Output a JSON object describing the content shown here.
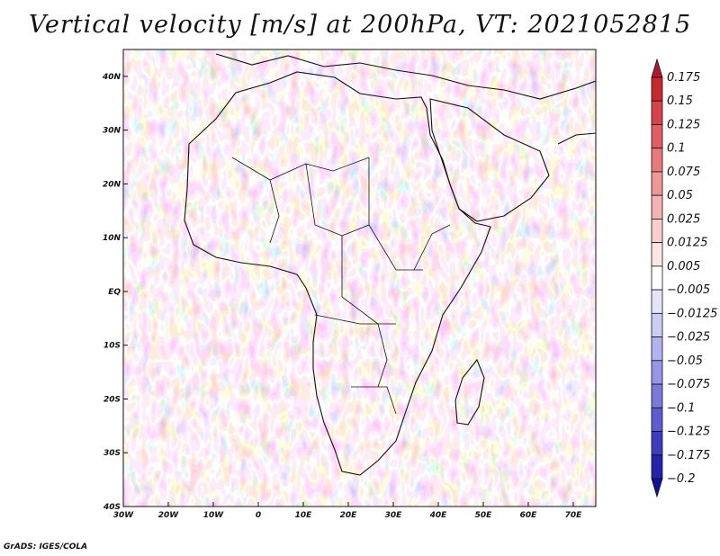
{
  "title": "Vertical velocity [m/s] at 200hPa, VT: 2021052815",
  "credit": "GrADS: IGES/COLA",
  "map": {
    "region": "Africa",
    "variable": "Vertical velocity",
    "units": "m/s",
    "level": "200hPa",
    "valid_time": "2021052815",
    "lon_range": [
      -30,
      75
    ],
    "lat_range": [
      -40,
      45
    ],
    "x_ticks": [
      "30W",
      "20W",
      "10W",
      "0",
      "10E",
      "20E",
      "30E",
      "40E",
      "50E",
      "60E",
      "70E"
    ],
    "x_tick_lons": [
      -30,
      -20,
      -10,
      0,
      10,
      20,
      30,
      40,
      50,
      60,
      70
    ],
    "y_ticks": [
      "40N",
      "30N",
      "20N",
      "10N",
      "EQ",
      "10S",
      "20S",
      "30S",
      "40S"
    ],
    "y_tick_lats": [
      40,
      30,
      20,
      10,
      0,
      -10,
      -20,
      -30,
      -40
    ]
  },
  "colorbar": {
    "labels": [
      "0.175",
      "0.15",
      "0.125",
      "0.1",
      "0.075",
      "0.05",
      "0.025",
      "0.0125",
      "0.005",
      "−0.005",
      "−0.0125",
      "−0.025",
      "−0.05",
      "−0.075",
      "−0.1",
      "−0.125",
      "−0.175",
      "−0.2"
    ],
    "colors": [
      "#b2182b",
      "#c62a2f",
      "#d6434a",
      "#e05d63",
      "#e87a7d",
      "#ef9697",
      "#f4b3b2",
      "#f8cfcd",
      "#fbe6e4",
      "#ffffff",
      "#e4e4fb",
      "#ccccf5",
      "#b2b2ee",
      "#9696e6",
      "#7a7adc",
      "#5c5cd0",
      "#3d3dc0",
      "#2323ac",
      "#12129a"
    ]
  }
}
